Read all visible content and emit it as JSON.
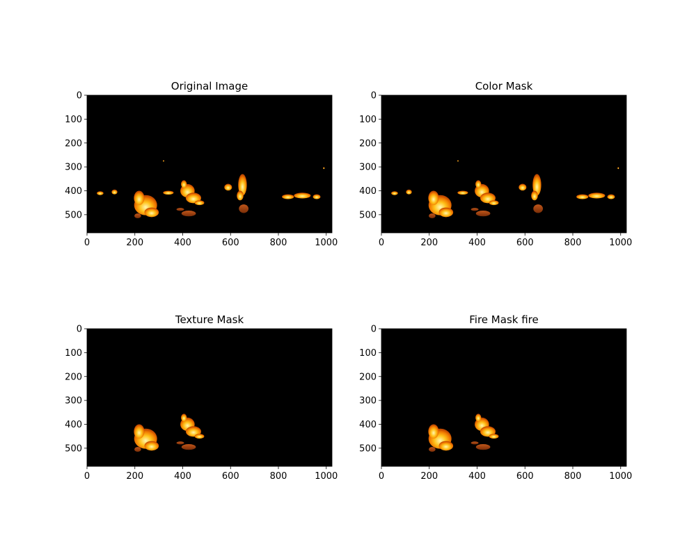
{
  "colors": {
    "background": "#ffffff",
    "image_background": "#000000",
    "flame_core": "#fff3a0",
    "flame_mid": "#ffb000",
    "flame_outer": "#e05a00",
    "ember": "#9a3d0c"
  },
  "panels": [
    {
      "title": "Original Image",
      "x_ticks": [
        "0",
        "200",
        "400",
        "600",
        "800",
        "1000"
      ],
      "y_ticks": [
        "0",
        "100",
        "200",
        "300",
        "400",
        "500"
      ],
      "content": "full"
    },
    {
      "title": "Color Mask",
      "x_ticks": [
        "0",
        "200",
        "400",
        "600",
        "800",
        "1000"
      ],
      "y_ticks": [
        "0",
        "100",
        "200",
        "300",
        "400",
        "500"
      ],
      "content": "full"
    },
    {
      "title": "Texture Mask",
      "x_ticks": [
        "0",
        "200",
        "400",
        "600",
        "800",
        "1000"
      ],
      "y_ticks": [
        "0",
        "100",
        "200",
        "300",
        "400",
        "500"
      ],
      "content": "left_fires"
    },
    {
      "title": "Fire Mask fire",
      "x_ticks": [
        "0",
        "200",
        "400",
        "600",
        "800",
        "1000"
      ],
      "y_ticks": [
        "0",
        "100",
        "200",
        "300",
        "400",
        "500"
      ],
      "content": "left_fires"
    }
  ]
}
